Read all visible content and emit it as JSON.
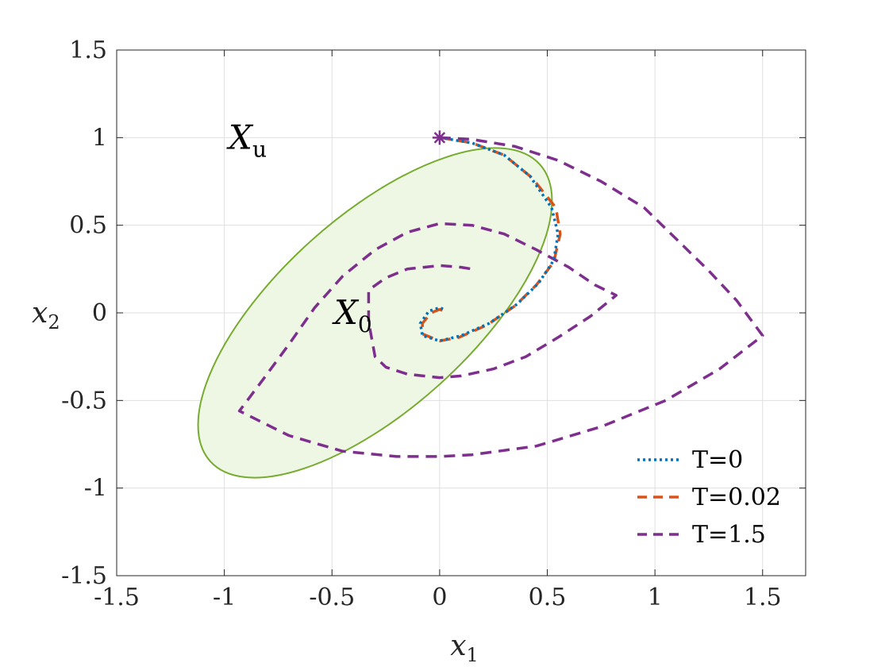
{
  "chart_data": {
    "type": "line",
    "xlabel": "x",
    "xlabel_sub": "1",
    "ylabel": "x",
    "ylabel_sub": "2",
    "xlim": [
      -1.5,
      1.7
    ],
    "ylim": [
      -1.5,
      1.5
    ],
    "xticks": [
      -1.5,
      -1,
      -0.5,
      0,
      0.5,
      1,
      1.5
    ],
    "yticks": [
      -1.5,
      -1,
      -0.5,
      0,
      0.5,
      1,
      1.5
    ],
    "xtick_labels": [
      "-1.5",
      "-1",
      "-0.5",
      "0",
      "0.5",
      "1",
      "1.5"
    ],
    "ytick_labels": [
      "-1.5",
      "-1",
      "-0.5",
      "0",
      "0.5",
      "1",
      "1.5"
    ],
    "grid": true,
    "legend_position": "bottom-right",
    "region": {
      "shape": "ellipse",
      "center": [
        -0.3,
        0.0
      ],
      "semi_axes": [
        1.03,
        0.55
      ],
      "angle_deg": 42,
      "fill": "#edf7e4",
      "edge": "#77ac30"
    },
    "annotations": [
      {
        "text": "X",
        "sub": "u",
        "x": -0.98,
        "y": 1.0
      },
      {
        "text": "X",
        "sub": "0",
        "x": -0.49,
        "y": 0.0
      }
    ],
    "marker": {
      "x": 0.0,
      "y": 1.0,
      "symbol": "asterisk",
      "color": "#7e2f8e"
    },
    "series": [
      {
        "name": "T=0",
        "style": "dotted",
        "color": "#0072bd",
        "x": [
          0.0,
          0.15,
          0.3,
          0.42,
          0.52,
          0.55,
          0.53,
          0.46,
          0.36,
          0.23,
          0.1,
          0.0,
          -0.08,
          -0.09,
          -0.05,
          0.0,
          0.02
        ],
        "y": [
          1.0,
          0.97,
          0.9,
          0.78,
          0.6,
          0.45,
          0.3,
          0.17,
          0.05,
          -0.06,
          -0.13,
          -0.16,
          -0.13,
          -0.06,
          0.01,
          0.03,
          0.02
        ]
      },
      {
        "name": "T=0.02",
        "style": "dashed",
        "color": "#d95319",
        "x": [
          0.0,
          0.15,
          0.3,
          0.43,
          0.54,
          0.56,
          0.53,
          0.45,
          0.35,
          0.22,
          0.09,
          0.0,
          -0.08,
          -0.08,
          -0.04,
          0.0,
          0.02
        ],
        "y": [
          1.0,
          0.97,
          0.9,
          0.77,
          0.6,
          0.45,
          0.29,
          0.16,
          0.04,
          -0.07,
          -0.14,
          -0.16,
          -0.12,
          -0.06,
          0.0,
          0.02,
          0.01
        ]
      },
      {
        "name": "T=1.5",
        "style": "dashed",
        "color": "#7e2f8e",
        "x": [
          0.0,
          0.15,
          0.35,
          0.55,
          0.75,
          0.95,
          1.1,
          1.25,
          1.38,
          1.5,
          1.3,
          1.05,
          0.75,
          0.45,
          0.15,
          0.0,
          -0.2,
          -0.45,
          -0.7,
          -0.93,
          -0.82,
          -0.7,
          -0.58,
          -0.45,
          -0.3,
          -0.15,
          0.0,
          0.15,
          0.3,
          0.45,
          0.6,
          0.72,
          0.82,
          0.7,
          0.55,
          0.4,
          0.25,
          0.1,
          0.0,
          -0.15,
          -0.25,
          -0.3,
          -0.33,
          -0.33,
          -0.25,
          -0.15,
          0.0,
          0.1,
          0.15
        ],
        "y": [
          1.0,
          0.99,
          0.95,
          0.87,
          0.75,
          0.6,
          0.42,
          0.24,
          0.07,
          -0.13,
          -0.32,
          -0.5,
          -0.65,
          -0.76,
          -0.81,
          -0.82,
          -0.82,
          -0.79,
          -0.7,
          -0.56,
          -0.38,
          -0.18,
          0.03,
          0.21,
          0.36,
          0.46,
          0.51,
          0.5,
          0.45,
          0.36,
          0.26,
          0.16,
          0.1,
          -0.02,
          -0.14,
          -0.25,
          -0.32,
          -0.36,
          -0.37,
          -0.35,
          -0.31,
          -0.25,
          -0.05,
          0.13,
          0.2,
          0.25,
          0.27,
          0.26,
          0.25
        ]
      }
    ]
  }
}
